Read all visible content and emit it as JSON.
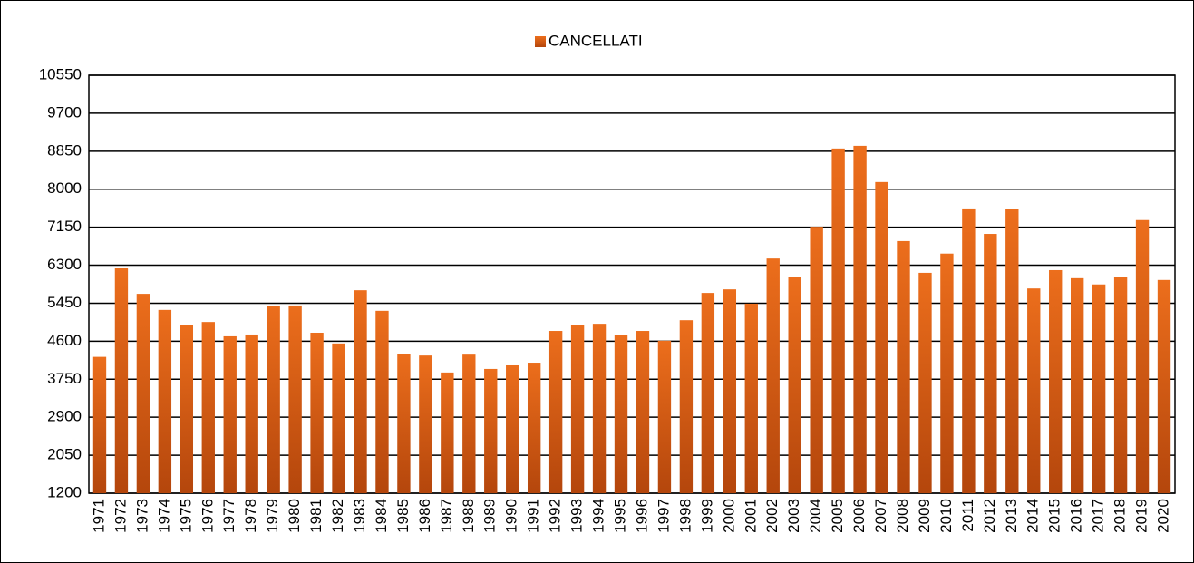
{
  "chart_data": {
    "type": "bar",
    "legend": "CANCELLATI",
    "series": [
      {
        "name": "CANCELLATI",
        "color": "#ec6e1c",
        "values": [
          4250,
          6230,
          5660,
          5300,
          4970,
          5030,
          4710,
          4750,
          5380,
          5400,
          4790,
          4550,
          5740,
          5280,
          4320,
          4280,
          3900,
          4300,
          3980,
          4060,
          4120,
          4830,
          4970,
          4990,
          4730,
          4830,
          4610,
          5070,
          5680,
          5760,
          5440,
          6450,
          6030,
          7160,
          8910,
          8970,
          8160,
          6840,
          6130,
          6560,
          7570,
          7000,
          7550,
          5780,
          6190,
          6010,
          5870,
          6030,
          7310,
          5970
        ]
      }
    ],
    "categories": [
      "1971",
      "1972",
      "1973",
      "1974",
      "1975",
      "1976",
      "1977",
      "1978",
      "1979",
      "1980",
      "1981",
      "1982",
      "1983",
      "1984",
      "1985",
      "1986",
      "1987",
      "1988",
      "1989",
      "1990",
      "1991",
      "1992",
      "1993",
      "1994",
      "1995",
      "1996",
      "1997",
      "1998",
      "1999",
      "2000",
      "2001",
      "2002",
      "2003",
      "2004",
      "2005",
      "2006",
      "2007",
      "2008",
      "2009",
      "2010",
      "2011",
      "2012",
      "2013",
      "2014",
      "2015",
      "2016",
      "2017",
      "2018",
      "2019",
      "2020"
    ],
    "ylim": [
      1200,
      10550
    ],
    "yticks": [
      1200,
      2050,
      2900,
      3750,
      4600,
      5450,
      6300,
      7150,
      8000,
      8850,
      9700,
      10550
    ],
    "grid": true,
    "legend_position": "top"
  }
}
